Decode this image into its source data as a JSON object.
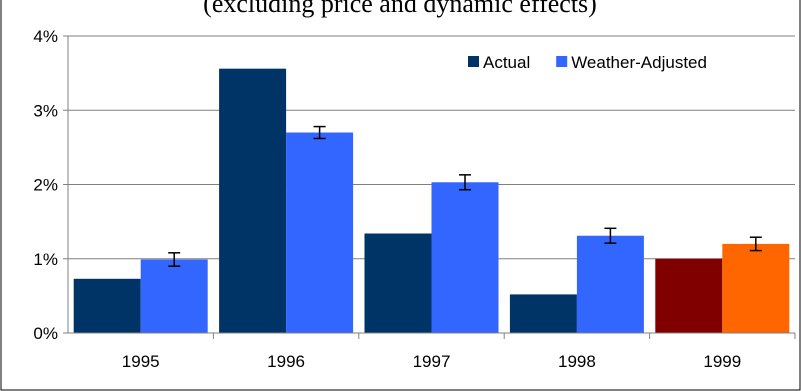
{
  "chart_data": {
    "type": "bar",
    "title": "(excluding price and dynamic effects)",
    "xlabel": "",
    "ylabel": "",
    "categories": [
      "1995",
      "1996",
      "1997",
      "1998",
      "1999"
    ],
    "ylim": [
      0,
      4
    ],
    "y_ticks": [
      0,
      1,
      2,
      3,
      4
    ],
    "y_tick_labels": [
      "0%",
      "1%",
      "2%",
      "3%",
      "4%"
    ],
    "grid": true,
    "legend_position": "top-right",
    "series": [
      {
        "name": "Actual",
        "color": "#003366",
        "values": [
          0.73,
          3.56,
          1.34,
          0.52,
          1.0
        ],
        "point_colors": [
          "#003366",
          "#003366",
          "#003366",
          "#003366",
          "#800000"
        ]
      },
      {
        "name": "Weather-Adjusted",
        "color": "#3366FF",
        "values": [
          0.99,
          2.7,
          2.03,
          1.31,
          1.2
        ],
        "point_colors": [
          "#3366FF",
          "#3366FF",
          "#3366FF",
          "#3366FF",
          "#FF6600"
        ],
        "error": [
          0.09,
          0.08,
          0.1,
          0.1,
          0.09
        ]
      }
    ]
  }
}
